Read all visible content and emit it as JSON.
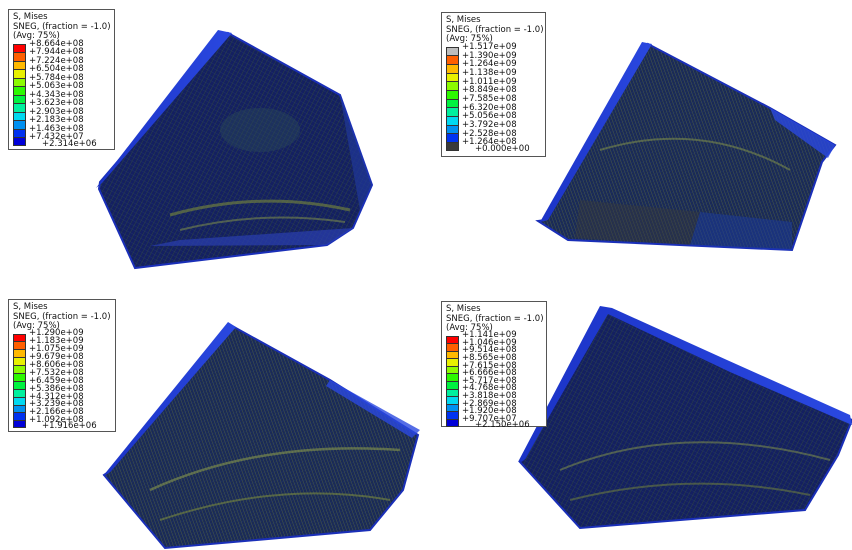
{
  "colors": {
    "contour": [
      "#ff0000",
      "#ff5f00",
      "#ffb900",
      "#e8f000",
      "#8cfb00",
      "#2df800",
      "#00f240",
      "#00f09e",
      "#00d8f0",
      "#0090f0",
      "#0032f0",
      "#0000d8"
    ],
    "mesh_blue": "#1a2fb8",
    "mesh_dark": "#0d1a4a"
  },
  "panels": [
    {
      "legend": {
        "title": "S, Mises",
        "subtitle": "SNEG, (fraction = -1.0)",
        "avg": "(Avg: 75%)",
        "values": [
          "+8.664e+08",
          "+7.944e+08",
          "+7.224e+08",
          "+6.504e+08",
          "+5.784e+08",
          "+5.063e+08",
          "+4.343e+08",
          "+3.623e+08",
          "+2.903e+08",
          "+2.183e+08",
          "+1.463e+08",
          "+7.432e+07",
          "+2.314e+06"
        ],
        "gray_top": false
      }
    },
    {
      "legend": {
        "title": "S, Mises",
        "subtitle": "SNEG, (fraction = -1.0)",
        "avg": "(Avg: 75%)",
        "values": [
          "+1.517e+09",
          "+1.390e+09",
          "+1.264e+09",
          "+1.138e+09",
          "+1.011e+09",
          "+8.849e+08",
          "+7.585e+08",
          "+6.320e+08",
          "+5.056e+08",
          "+3.792e+08",
          "+2.528e+08",
          "+1.264e+08",
          "+0.000e+00"
        ],
        "gray_top": true
      }
    },
    {
      "legend": {
        "title": "S, Mises",
        "subtitle": "SNEG, (fraction = -1.0)",
        "avg": "(Avg: 75%)",
        "values": [
          "+1.290e+09",
          "+1.183e+09",
          "+1.075e+09",
          "+9.679e+08",
          "+8.606e+08",
          "+7.532e+08",
          "+6.459e+08",
          "+5.386e+08",
          "+4.312e+08",
          "+3.239e+08",
          "+2.166e+08",
          "+1.092e+08",
          "+1.916e+06"
        ],
        "gray_top": false
      }
    },
    {
      "legend": {
        "title": "S, Mises",
        "subtitle": "SNEG, (fraction = -1.0)",
        "avg": "(Avg: 75%)",
        "values": [
          "+1.141e+09",
          "+1.046e+09",
          "+9.514e+08",
          "+8.565e+08",
          "+7.615e+08",
          "+6.666e+08",
          "+5.717e+08",
          "+4.768e+08",
          "+3.818e+08",
          "+2.869e+08",
          "+1.920e+08",
          "+9.707e+07",
          "+2.150e+06"
        ],
        "gray_top": false
      }
    }
  ]
}
